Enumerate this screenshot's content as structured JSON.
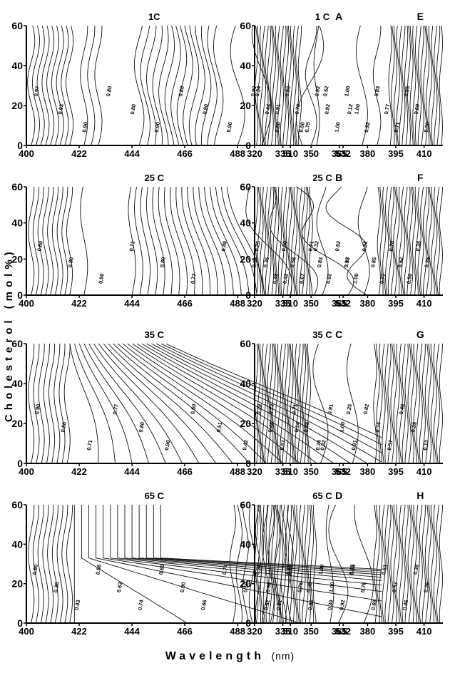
{
  "figure": {
    "ylabel": "Cholesterol (mol%)",
    "xlabel": "Wavelength",
    "xunit": "(nm)"
  },
  "chart_data": [
    {
      "type": "contour",
      "panel": "A",
      "title": "1C",
      "x_ticks": [
        400,
        422,
        444,
        466,
        488,
        510,
        532
      ],
      "xlim": [
        400,
        548
      ],
      "y_ticks": [
        0,
        20,
        40,
        60
      ],
      "ylim": [
        0,
        60
      ],
      "contour_labels": [
        "0.97",
        "0.93",
        "0.90",
        "0.80",
        "0.80",
        "0.90",
        "0.80",
        "0.90",
        "0.90",
        "0.90",
        "0.91",
        "0.50",
        "0.52",
        "0.12"
      ]
    },
    {
      "type": "contour",
      "panel": "E",
      "title": "1 C",
      "x_ticks": [
        320,
        335,
        350,
        365,
        380,
        395,
        410
      ],
      "xlim": [
        320,
        420
      ],
      "y_ticks": [
        0,
        20,
        40,
        60
      ],
      "ylim": [
        0,
        60
      ],
      "contour_labels": [
        "0.34",
        "0.44",
        "0.50",
        "0.60",
        "0.70",
        "0.75",
        "0.92",
        "0.92",
        "1.00",
        "1.00",
        "1.00",
        "0.92",
        "0.83",
        "0.77",
        "0.71",
        "0.65",
        "0.60",
        "0.50"
      ]
    },
    {
      "type": "contour",
      "panel": "B",
      "title": "25 C",
      "x_ticks": [
        400,
        422,
        444,
        466,
        488,
        510,
        532
      ],
      "xlim": [
        400,
        548
      ],
      "y_ticks": [
        0,
        20,
        40,
        60
      ],
      "ylim": [
        0,
        60
      ],
      "contour_labels": [
        "0.80",
        "0.80",
        "0.90",
        "0.71",
        "0.80",
        "0.77",
        "0.49",
        "0.51",
        "0.42",
        "0.32",
        "0.13"
      ]
    },
    {
      "type": "contour",
      "panel": "F",
      "title": "25 C",
      "x_ticks": [
        320,
        335,
        350,
        365,
        380,
        395,
        410
      ],
      "xlim": [
        320,
        420
      ],
      "y_ticks": [
        0,
        20,
        40,
        60
      ],
      "ylim": [
        0,
        60
      ],
      "contour_labels": [
        "0.25",
        "0.35",
        "0.42",
        "0.50",
        "0.56",
        "0.67",
        "0.71",
        "0.83",
        "0.92",
        "0.92",
        "0.92",
        "1.00",
        "0.92",
        "0.85",
        "0.77",
        "0.70",
        "0.62",
        "0.50",
        "0.35",
        "0.25"
      ]
    },
    {
      "type": "contour",
      "panel": "C",
      "title": "35 C",
      "x_ticks": [
        400,
        422,
        444,
        466,
        488,
        510,
        532
      ],
      "xlim": [
        400,
        548
      ],
      "y_ticks": [
        0,
        20,
        40,
        60
      ],
      "ylim": [
        0,
        60
      ],
      "contour_labels": [
        "0.90",
        "0.80",
        "0.71",
        "0.77",
        "0.80",
        "0.90",
        "0.50",
        "0.51",
        "0.42",
        "0.23",
        "0.14",
        "0.32",
        "0.25"
      ]
    },
    {
      "type": "contour",
      "panel": "G",
      "title": "35 C",
      "x_ticks": [
        320,
        335,
        350,
        365,
        380,
        395,
        410
      ],
      "xlim": [
        320,
        420
      ],
      "y_ticks": [
        0,
        20,
        40,
        60
      ],
      "ylim": [
        0,
        60
      ],
      "contour_labels": [
        "0.39",
        "0.48",
        "0.57",
        "0.71",
        "0.88",
        "0.74",
        "0.91",
        "1.00",
        "0.91",
        "0.82",
        "0.74",
        "0.57",
        "0.48",
        "0.39",
        "0.13"
      ]
    },
    {
      "type": "contour",
      "panel": "D",
      "title": "65 C",
      "x_ticks": [
        400,
        422,
        444,
        466,
        488,
        510,
        532
      ],
      "xlim": [
        400,
        548
      ],
      "y_ticks": [
        0,
        20,
        40,
        60
      ],
      "ylim": [
        0,
        60
      ],
      "contour_labels": [
        "0.90",
        "0.38",
        "0.43",
        "0.56",
        "0.63",
        "0.74",
        "0.80",
        "0.90",
        "0.66",
        "0.74",
        "0.58",
        "0.52",
        "0.38",
        "0.38",
        "0.39",
        "0.19"
      ]
    },
    {
      "type": "contour",
      "panel": "H",
      "title": "65 C",
      "x_ticks": [
        320,
        335,
        350,
        365,
        380,
        395,
        410
      ],
      "xlim": [
        320,
        420
      ],
      "y_ticks": [
        0,
        20,
        40,
        60
      ],
      "ylim": [
        0,
        60
      ],
      "contour_labels": [
        "0.34",
        "0.50",
        "0.61",
        "0.67",
        "0.76",
        "0.82",
        "1.00",
        "1.00",
        "0.92",
        "0.84",
        "0.76",
        "0.69",
        "0.61",
        "0.53",
        "0.46",
        "0.38",
        "0.26"
      ]
    }
  ]
}
